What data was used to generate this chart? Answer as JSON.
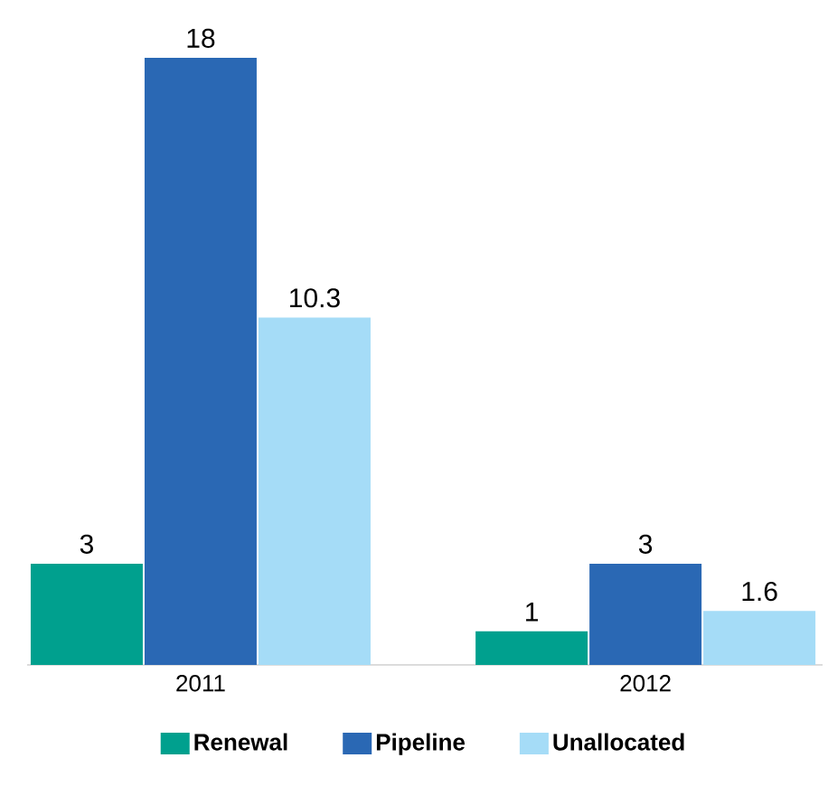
{
  "chart_data": {
    "type": "bar",
    "categories": [
      "2011",
      "2012"
    ],
    "series": [
      {
        "name": "Renewal",
        "color": "#00a08e",
        "values": [
          3,
          1
        ]
      },
      {
        "name": "Pipeline",
        "color": "#2a68b4",
        "values": [
          18,
          3
        ]
      },
      {
        "name": "Unallocated",
        "color": "#a5dcf7",
        "values": [
          10.3,
          1.6
        ]
      }
    ],
    "data_labels": true,
    "legend": "bottom"
  }
}
